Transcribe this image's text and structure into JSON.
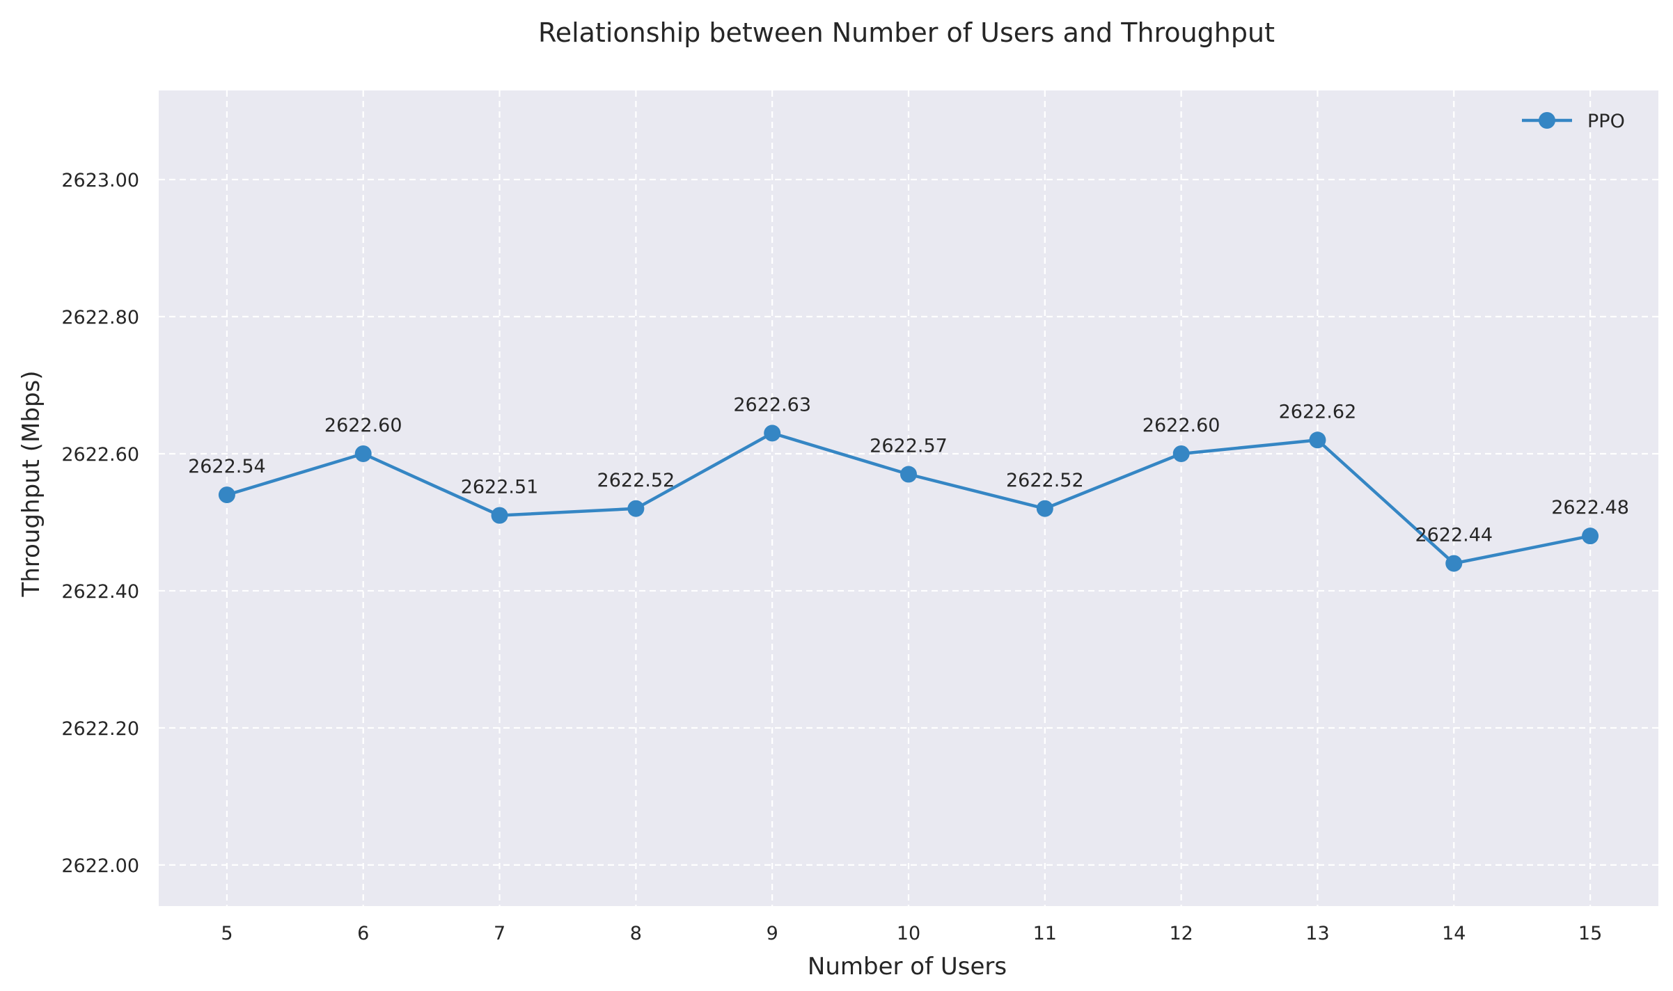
{
  "chart_data": {
    "type": "line",
    "title": "Relationship between Number of Users and Throughput",
    "xlabel": "Number of Users",
    "ylabel": "Throughput (Mbps)",
    "x": [
      5,
      6,
      7,
      8,
      9,
      10,
      11,
      12,
      13,
      14,
      15
    ],
    "x_tick_labels": [
      "5",
      "6",
      "7",
      "8",
      "9",
      "10",
      "11",
      "12",
      "13",
      "14",
      "15"
    ],
    "y_ticks": [
      2622.0,
      2622.2,
      2622.4,
      2622.6,
      2622.8,
      2623.0
    ],
    "y_tick_labels": [
      "2622.00",
      "2622.20",
      "2622.40",
      "2622.60",
      "2622.80",
      "2623.00"
    ],
    "xlim": [
      4.5,
      15.5
    ],
    "ylim": [
      2621.94,
      2623.13
    ],
    "grid": true,
    "legend_position": "top-right",
    "series": [
      {
        "name": "PPO",
        "color": "#3586c4",
        "values": [
          2622.54,
          2622.6,
          2622.51,
          2622.52,
          2622.63,
          2622.57,
          2622.52,
          2622.6,
          2622.62,
          2622.44,
          2622.48
        ],
        "data_labels": [
          "2622.54",
          "2622.60",
          "2622.51",
          "2622.52",
          "2622.63",
          "2622.57",
          "2622.52",
          "2622.60",
          "2622.62",
          "2622.44",
          "2622.48"
        ]
      }
    ],
    "colors": {
      "plot_background": "#e9e9f1",
      "grid": "#ffffff",
      "text": "#262626"
    }
  }
}
